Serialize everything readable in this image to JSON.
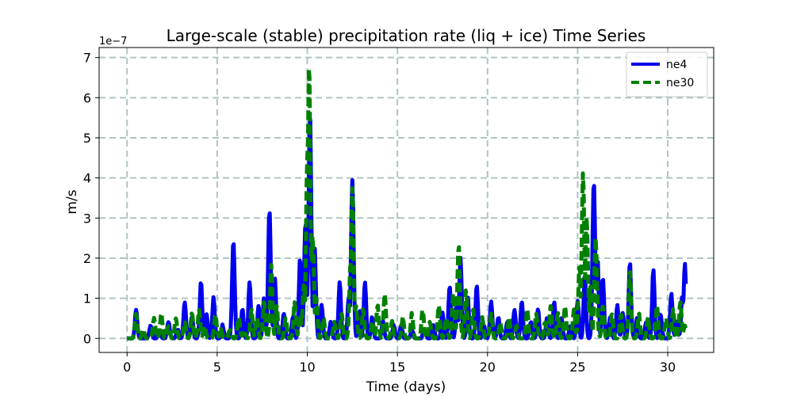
{
  "chart_data": {
    "type": "line",
    "title": "Large-scale (stable) precipitation rate (liq + ice) Time Series",
    "xlabel": "Time (days)",
    "ylabel": "m/s",
    "y_offset_label": "1e−7",
    "xlim": [
      -1.55,
      32.55
    ],
    "ylim": [
      -0.35,
      7.25
    ],
    "xticks": [
      0,
      5,
      10,
      15,
      20,
      25,
      30
    ],
    "xtick_labels": [
      "0",
      "5",
      "10",
      "15",
      "20",
      "25",
      "30"
    ],
    "yticks": [
      0,
      1,
      2,
      3,
      4,
      5,
      6,
      7
    ],
    "ytick_labels": [
      "0",
      "1",
      "2",
      "3",
      "4",
      "5",
      "6",
      "7"
    ],
    "grid": true,
    "legend_position": "top-right",
    "series": [
      {
        "name": "ne4",
        "color": "#0000ee",
        "style": "solid",
        "peaks": [
          [
            0.5,
            0.7
          ],
          [
            1.3,
            0.3
          ],
          [
            1.8,
            0.2
          ],
          [
            2.3,
            0.4
          ],
          [
            2.8,
            0.2
          ],
          [
            3.2,
            0.9
          ],
          [
            3.6,
            0.5
          ],
          [
            4.1,
            1.4
          ],
          [
            4.4,
            0.6
          ],
          [
            4.8,
            1.0
          ],
          [
            5.3,
            0.3
          ],
          [
            5.9,
            2.4
          ],
          [
            6.4,
            0.7
          ],
          [
            6.8,
            1.4
          ],
          [
            7.3,
            0.8
          ],
          [
            7.6,
            1.0
          ],
          [
            7.9,
            3.2
          ],
          [
            8.2,
            1.5
          ],
          [
            8.7,
            0.6
          ],
          [
            9.2,
            0.5
          ],
          [
            9.6,
            2.0
          ],
          [
            9.9,
            2.9
          ],
          [
            10.15,
            5.6
          ],
          [
            10.4,
            2.3
          ],
          [
            10.8,
            0.8
          ],
          [
            11.3,
            0.4
          ],
          [
            11.8,
            1.4
          ],
          [
            12.3,
            1.0
          ],
          [
            12.5,
            3.9
          ],
          [
            12.9,
            0.7
          ],
          [
            13.2,
            1.4
          ],
          [
            13.6,
            0.5
          ],
          [
            14.2,
            0.4
          ],
          [
            14.8,
            0.3
          ],
          [
            15.2,
            0.3
          ],
          [
            15.8,
            0.2
          ],
          [
            16.5,
            0.2
          ],
          [
            17.0,
            0.3
          ],
          [
            17.5,
            0.6
          ],
          [
            17.9,
            1.3
          ],
          [
            18.3,
            0.9
          ],
          [
            18.5,
            2.0
          ],
          [
            18.9,
            1.0
          ],
          [
            19.4,
            1.3
          ],
          [
            19.8,
            0.3
          ],
          [
            20.2,
            0.9
          ],
          [
            20.6,
            0.5
          ],
          [
            21.1,
            0.4
          ],
          [
            21.5,
            0.7
          ],
          [
            21.9,
            0.9
          ],
          [
            22.4,
            0.4
          ],
          [
            22.8,
            0.7
          ],
          [
            23.3,
            0.5
          ],
          [
            23.7,
            0.9
          ],
          [
            24.1,
            0.5
          ],
          [
            24.6,
            0.3
          ],
          [
            25.0,
            0.9
          ],
          [
            25.4,
            1.6
          ],
          [
            25.9,
            3.9
          ],
          [
            26.1,
            2.0
          ],
          [
            26.4,
            1.5
          ],
          [
            26.8,
            0.5
          ],
          [
            27.2,
            0.8
          ],
          [
            27.5,
            0.6
          ],
          [
            27.9,
            1.9
          ],
          [
            28.3,
            0.5
          ],
          [
            28.8,
            0.4
          ],
          [
            29.2,
            1.7
          ],
          [
            29.6,
            0.6
          ],
          [
            30.2,
            1.1
          ],
          [
            30.5,
            0.4
          ],
          [
            30.8,
            1.0
          ],
          [
            30.95,
            1.85
          ]
        ]
      },
      {
        "name": "ne30",
        "color": "#008000",
        "style": "dashed",
        "peaks": [
          [
            0.5,
            0.6
          ],
          [
            0.9,
            0.2
          ],
          [
            1.5,
            0.5
          ],
          [
            1.9,
            0.6
          ],
          [
            2.3,
            0.3
          ],
          [
            2.7,
            0.5
          ],
          [
            3.2,
            0.4
          ],
          [
            3.6,
            0.6
          ],
          [
            4.0,
            0.7
          ],
          [
            4.3,
            0.3
          ],
          [
            4.9,
            0.6
          ],
          [
            5.2,
            0.2
          ],
          [
            5.7,
            0.2
          ],
          [
            6.2,
            0.5
          ],
          [
            6.5,
            0.2
          ],
          [
            6.9,
            0.7
          ],
          [
            7.2,
            0.5
          ],
          [
            7.6,
            0.9
          ],
          [
            8.0,
            1.8
          ],
          [
            8.3,
            0.8
          ],
          [
            8.8,
            0.5
          ],
          [
            9.3,
            0.9
          ],
          [
            9.6,
            0.6
          ],
          [
            9.8,
            1.3
          ],
          [
            10.0,
            4.5
          ],
          [
            10.1,
            6.9
          ],
          [
            10.3,
            2.5
          ],
          [
            10.5,
            1.0
          ],
          [
            10.9,
            0.5
          ],
          [
            11.5,
            0.4
          ],
          [
            11.9,
            0.6
          ],
          [
            12.4,
            1.9
          ],
          [
            12.5,
            3.7
          ],
          [
            12.7,
            0.8
          ],
          [
            13.1,
            0.7
          ],
          [
            13.6,
            0.4
          ],
          [
            13.9,
            0.8
          ],
          [
            14.3,
            1.1
          ],
          [
            14.7,
            0.4
          ],
          [
            15.3,
            0.5
          ],
          [
            15.8,
            0.6
          ],
          [
            16.4,
            0.7
          ],
          [
            16.8,
            0.4
          ],
          [
            17.3,
            0.8
          ],
          [
            17.7,
            0.5
          ],
          [
            18.1,
            1.1
          ],
          [
            18.4,
            2.3
          ],
          [
            18.8,
            1.2
          ],
          [
            19.2,
            0.7
          ],
          [
            19.7,
            0.5
          ],
          [
            20.2,
            0.6
          ],
          [
            20.7,
            0.4
          ],
          [
            21.2,
            0.5
          ],
          [
            21.6,
            0.3
          ],
          [
            22.2,
            0.7
          ],
          [
            22.7,
            0.6
          ],
          [
            23.2,
            0.4
          ],
          [
            23.5,
            0.8
          ],
          [
            23.9,
            0.6
          ],
          [
            24.3,
            0.8
          ],
          [
            24.8,
            0.7
          ],
          [
            25.1,
            1.8
          ],
          [
            25.3,
            4.1
          ],
          [
            25.5,
            3.0
          ],
          [
            25.7,
            1.3
          ],
          [
            26.0,
            2.5
          ],
          [
            26.4,
            0.8
          ],
          [
            26.9,
            0.6
          ],
          [
            27.4,
            0.6
          ],
          [
            27.9,
            1.7
          ],
          [
            28.4,
            0.6
          ],
          [
            28.9,
            0.5
          ],
          [
            29.4,
            0.8
          ],
          [
            29.9,
            0.5
          ],
          [
            30.3,
            0.7
          ],
          [
            30.7,
            0.9
          ],
          [
            30.95,
            0.3
          ]
        ]
      }
    ]
  }
}
